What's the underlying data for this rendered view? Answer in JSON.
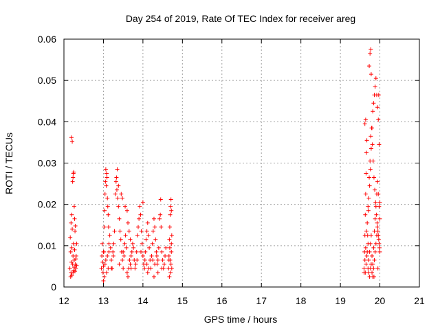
{
  "chart_data": {
    "type": "scatter",
    "title": "Day 254 of 2019, Rate Of TEC Index for receiver areg",
    "xlabel": "GPS time / hours",
    "ylabel": "ROTI / TECUs",
    "xlim": [
      12,
      21
    ],
    "ylim": [
      0,
      0.06
    ],
    "x_ticks": [
      12,
      13,
      14,
      15,
      16,
      17,
      18,
      19,
      20,
      21
    ],
    "y_ticks": [
      0,
      0.01,
      0.02,
      0.03,
      0.04,
      0.05,
      0.06
    ],
    "x_tick_labels": [
      "12",
      "13",
      "14",
      "15",
      "16",
      "17",
      "18",
      "19",
      "20",
      "21"
    ],
    "y_tick_labels": [
      "0",
      "0.01",
      "0.02",
      "0.03",
      "0.04",
      "0.05",
      "0.06"
    ],
    "grid": true,
    "marker": "+",
    "color": "#ff0000",
    "series": [
      {
        "name": "ROTI",
        "points": [
          [
            12.15,
            0.0045
          ],
          [
            12.16,
            0.012
          ],
          [
            12.17,
            0.0085
          ],
          [
            12.18,
            0.0035
          ],
          [
            12.19,
            0.006
          ],
          [
            12.2,
            0.0095
          ],
          [
            12.21,
            0.014
          ],
          [
            12.22,
            0.0055
          ],
          [
            12.23,
            0.0075
          ],
          [
            12.24,
            0.0105
          ],
          [
            12.25,
            0.004
          ],
          [
            12.26,
            0.0065
          ],
          [
            12.27,
            0.009
          ],
          [
            12.28,
            0.0135
          ],
          [
            12.29,
            0.0055
          ],
          [
            12.3,
            0.0045
          ],
          [
            12.31,
            0.0075
          ],
          [
            12.32,
            0.0105
          ],
          [
            12.18,
            0.0155
          ],
          [
            12.2,
            0.0175
          ],
          [
            12.22,
            0.0255
          ],
          [
            12.23,
            0.0265
          ],
          [
            12.24,
            0.0275
          ],
          [
            12.25,
            0.0278
          ],
          [
            12.26,
            0.0195
          ],
          [
            12.27,
            0.0165
          ],
          [
            12.29,
            0.0148
          ],
          [
            12.19,
            0.0362
          ],
          [
            12.21,
            0.0352
          ],
          [
            12.17,
            0.0025
          ],
          [
            12.2,
            0.0028
          ],
          [
            12.23,
            0.0035
          ],
          [
            12.26,
            0.0048
          ],
          [
            12.28,
            0.0038
          ],
          [
            12.3,
            0.0068
          ],
          [
            12.32,
            0.0052
          ],
          [
            12.95,
            0.0045
          ],
          [
            12.96,
            0.0075
          ],
          [
            12.97,
            0.0105
          ],
          [
            12.98,
            0.006
          ],
          [
            12.99,
            0.0035
          ],
          [
            13.0,
            0.005
          ],
          [
            13.01,
            0.0085
          ],
          [
            13.02,
            0.0145
          ],
          [
            13.03,
            0.0185
          ],
          [
            13.04,
            0.0225
          ],
          [
            13.05,
            0.0255
          ],
          [
            13.06,
            0.0285
          ],
          [
            13.07,
            0.0245
          ],
          [
            13.08,
            0.0275
          ],
          [
            13.09,
            0.0265
          ],
          [
            13.1,
            0.0215
          ],
          [
            13.11,
            0.0195
          ],
          [
            13.12,
            0.0175
          ],
          [
            13.13,
            0.0145
          ],
          [
            13.14,
            0.0105
          ],
          [
            13.0,
            0.0015
          ],
          [
            13.02,
            0.0025
          ],
          [
            13.04,
            0.0055
          ],
          [
            13.06,
            0.0065
          ],
          [
            13.08,
            0.0035
          ],
          [
            13.1,
            0.0075
          ],
          [
            13.12,
            0.0045
          ],
          [
            13.14,
            0.0085
          ],
          [
            13.16,
            0.0125
          ],
          [
            13.18,
            0.0095
          ],
          [
            13.2,
            0.0065
          ],
          [
            13.22,
            0.0045
          ],
          [
            13.24,
            0.0085
          ],
          [
            13.26,
            0.0105
          ],
          [
            13.28,
            0.0135
          ],
          [
            13.3,
            0.0225
          ],
          [
            13.32,
            0.0255
          ],
          [
            13.34,
            0.0235
          ],
          [
            13.36,
            0.0215
          ],
          [
            13.38,
            0.0195
          ],
          [
            13.4,
            0.0165
          ],
          [
            13.42,
            0.0135
          ],
          [
            13.44,
            0.0115
          ],
          [
            13.46,
            0.0085
          ],
          [
            13.48,
            0.0065
          ],
          [
            13.5,
            0.0045
          ],
          [
            13.52,
            0.0075
          ],
          [
            13.54,
            0.0105
          ],
          [
            13.56,
            0.0125
          ],
          [
            13.58,
            0.0095
          ],
          [
            13.35,
            0.0285
          ],
          [
            13.33,
            0.0265
          ],
          [
            13.38,
            0.0245
          ],
          [
            13.45,
            0.0225
          ],
          [
            13.48,
            0.0215
          ],
          [
            13.55,
            0.0195
          ],
          [
            13.6,
            0.0185
          ],
          [
            13.62,
            0.0155
          ],
          [
            13.65,
            0.0135
          ],
          [
            13.68,
            0.0115
          ],
          [
            13.6,
            0.0035
          ],
          [
            13.62,
            0.0025
          ],
          [
            13.64,
            0.0045
          ],
          [
            13.66,
            0.0065
          ],
          [
            13.68,
            0.0055
          ],
          [
            13.7,
            0.0075
          ],
          [
            13.72,
            0.0085
          ],
          [
            13.74,
            0.0105
          ],
          [
            13.76,
            0.0095
          ],
          [
            13.78,
            0.0065
          ],
          [
            13.8,
            0.0045
          ],
          [
            13.82,
            0.0055
          ],
          [
            13.84,
            0.0085
          ],
          [
            13.86,
            0.0125
          ],
          [
            13.88,
            0.0145
          ],
          [
            13.9,
            0.0165
          ],
          [
            13.92,
            0.0195
          ],
          [
            13.94,
            0.0175
          ],
          [
            13.96,
            0.0135
          ],
          [
            13.98,
            0.0105
          ],
          [
            14.0,
            0.0075
          ],
          [
            14.02,
            0.0055
          ],
          [
            14.04,
            0.0045
          ],
          [
            14.06,
            0.0085
          ],
          [
            14.08,
            0.0115
          ],
          [
            14.1,
            0.0135
          ],
          [
            14.12,
            0.0155
          ],
          [
            14.14,
            0.0125
          ],
          [
            14.16,
            0.0095
          ],
          [
            14.18,
            0.0065
          ],
          [
            14.2,
            0.0045
          ],
          [
            14.22,
            0.0075
          ],
          [
            14.24,
            0.0105
          ],
          [
            14.26,
            0.0135
          ],
          [
            14.28,
            0.0165
          ],
          [
            14.3,
            0.0145
          ],
          [
            14.32,
            0.0115
          ],
          [
            14.34,
            0.0085
          ],
          [
            14.36,
            0.0055
          ],
          [
            14.38,
            0.0065
          ],
          [
            14.4,
            0.0095
          ],
          [
            14.42,
            0.0165
          ],
          [
            14.44,
            0.0175
          ],
          [
            14.46,
            0.0145
          ],
          [
            14.48,
            0.0085
          ],
          [
            14.5,
            0.0065
          ],
          [
            14.52,
            0.0045
          ],
          [
            14.54,
            0.0055
          ],
          [
            14.56,
            0.0075
          ],
          [
            14.58,
            0.0095
          ],
          [
            14.0,
            0.0205
          ],
          [
            14.45,
            0.0212
          ],
          [
            14.12,
            0.0035
          ],
          [
            14.28,
            0.0025
          ],
          [
            14.38,
            0.0035
          ],
          [
            14.48,
            0.0045
          ],
          [
            14.3,
            0.0055
          ],
          [
            14.15,
            0.0045
          ],
          [
            14.05,
            0.0065
          ],
          [
            14.35,
            0.0075
          ],
          [
            13.0,
            0.0085
          ],
          [
            13.2,
            0.0045
          ],
          [
            13.25,
            0.0075
          ],
          [
            13.4,
            0.0055
          ],
          [
            13.5,
            0.0085
          ],
          [
            13.7,
            0.0045
          ],
          [
            13.85,
            0.0065
          ],
          [
            13.95,
            0.0085
          ],
          [
            14.1,
            0.0055
          ],
          [
            14.25,
            0.0065
          ],
          [
            14.65,
            0.0045
          ],
          [
            14.66,
            0.0075
          ],
          [
            14.67,
            0.0115
          ],
          [
            14.68,
            0.0095
          ],
          [
            14.69,
            0.0065
          ],
          [
            14.7,
            0.0035
          ],
          [
            14.71,
            0.0055
          ],
          [
            14.72,
            0.0085
          ],
          [
            14.73,
            0.0125
          ],
          [
            14.68,
            0.0145
          ],
          [
            14.69,
            0.0175
          ],
          [
            14.7,
            0.0195
          ],
          [
            14.71,
            0.0212
          ],
          [
            14.72,
            0.0185
          ],
          [
            14.67,
            0.0025
          ],
          [
            14.73,
            0.0045
          ],
          [
            14.66,
            0.0065
          ],
          [
            14.72,
            0.0105
          ],
          [
            19.6,
            0.0045
          ],
          [
            19.61,
            0.0085
          ],
          [
            19.62,
            0.0125
          ],
          [
            19.63,
            0.0175
          ],
          [
            19.64,
            0.0225
          ],
          [
            19.65,
            0.0275
          ],
          [
            19.66,
            0.0325
          ],
          [
            19.67,
            0.0355
          ],
          [
            19.62,
            0.0395
          ],
          [
            19.64,
            0.0405
          ],
          [
            19.6,
            0.0035
          ],
          [
            19.62,
            0.0065
          ],
          [
            19.64,
            0.0095
          ],
          [
            19.66,
            0.0135
          ],
          [
            19.68,
            0.0155
          ],
          [
            19.7,
            0.0195
          ],
          [
            19.72,
            0.0215
          ],
          [
            19.74,
            0.0245
          ],
          [
            19.76,
            0.0285
          ],
          [
            19.78,
            0.0335
          ],
          [
            19.8,
            0.0385
          ],
          [
            19.82,
            0.0425
          ],
          [
            19.84,
            0.0445
          ],
          [
            19.86,
            0.0465
          ],
          [
            19.88,
            0.0485
          ],
          [
            19.9,
            0.0505
          ],
          [
            19.92,
            0.0465
          ],
          [
            19.94,
            0.0435
          ],
          [
            19.96,
            0.0405
          ],
          [
            19.98,
            0.0345
          ],
          [
            19.7,
            0.0045
          ],
          [
            19.72,
            0.0065
          ],
          [
            19.74,
            0.0085
          ],
          [
            19.76,
            0.0105
          ],
          [
            19.78,
            0.0125
          ],
          [
            19.8,
            0.0075
          ],
          [
            19.82,
            0.0055
          ],
          [
            19.84,
            0.0095
          ],
          [
            19.86,
            0.0135
          ],
          [
            19.88,
            0.0165
          ],
          [
            19.9,
            0.0195
          ],
          [
            19.92,
            0.0225
          ],
          [
            19.94,
            0.0255
          ],
          [
            19.96,
            0.0225
          ],
          [
            19.98,
            0.0195
          ],
          [
            20.0,
            0.0165
          ],
          [
            19.75,
            0.0565
          ],
          [
            19.77,
            0.0575
          ],
          [
            19.73,
            0.0535
          ],
          [
            19.78,
            0.0515
          ],
          [
            19.68,
            0.0085
          ],
          [
            19.7,
            0.0105
          ],
          [
            19.72,
            0.0035
          ],
          [
            19.74,
            0.0025
          ],
          [
            19.76,
            0.0045
          ],
          [
            19.78,
            0.0055
          ],
          [
            19.8,
            0.0035
          ],
          [
            19.82,
            0.0025
          ],
          [
            19.84,
            0.0045
          ],
          [
            19.86,
            0.0065
          ],
          [
            19.88,
            0.0085
          ],
          [
            19.9,
            0.0105
          ],
          [
            19.92,
            0.0125
          ],
          [
            19.94,
            0.0145
          ],
          [
            19.96,
            0.0125
          ],
          [
            19.98,
            0.0105
          ],
          [
            20.0,
            0.0085
          ],
          [
            19.65,
            0.0055
          ],
          [
            19.67,
            0.0075
          ],
          [
            19.69,
            0.0125
          ],
          [
            19.71,
            0.0185
          ],
          [
            19.73,
            0.0265
          ],
          [
            19.75,
            0.0305
          ],
          [
            19.77,
            0.0365
          ],
          [
            19.79,
            0.0385
          ],
          [
            19.81,
            0.0345
          ],
          [
            19.83,
            0.0305
          ],
          [
            19.85,
            0.0265
          ],
          [
            19.87,
            0.0235
          ],
          [
            19.89,
            0.0205
          ],
          [
            19.91,
            0.0175
          ],
          [
            19.93,
            0.0155
          ],
          [
            19.95,
            0.0135
          ],
          [
            19.97,
            0.0115
          ],
          [
            19.99,
            0.0095
          ],
          [
            19.63,
            0.0035
          ],
          [
            19.85,
            0.0025
          ],
          [
            19.95,
            0.0045
          ],
          [
            20.0,
            0.0205
          ],
          [
            19.97,
            0.0465
          ]
        ]
      }
    ]
  }
}
